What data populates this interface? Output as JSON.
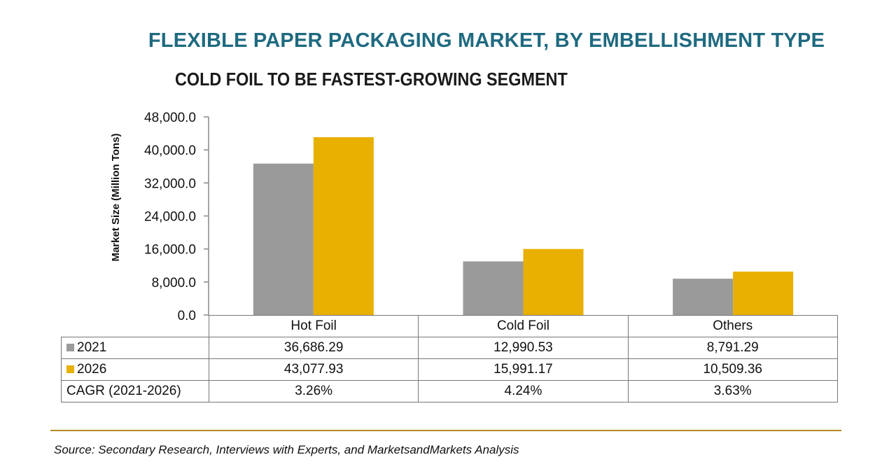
{
  "chart_data": {
    "type": "bar",
    "title": "FLEXIBLE PAPER PACKAGING MARKET, BY EMBELLISHMENT TYPE",
    "subtitle": "COLD FOIL TO BE FASTEST-GROWING SEGMENT",
    "ylabel": "Market Size (Million Tons)",
    "xlabel": "",
    "ylim": [
      0,
      48000
    ],
    "yticks": [
      "0.0",
      "8,000.0",
      "16,000.0",
      "24,000.0",
      "32,000.0",
      "40,000.0",
      "48,000.0"
    ],
    "categories": [
      "Hot Foil",
      "Cold Foil",
      "Others"
    ],
    "series": [
      {
        "name": "2021",
        "color": "#9a9a9a",
        "values": [
          36686.29,
          12990.53,
          8791.29
        ],
        "labels": [
          "36,686.29",
          "12,990.53",
          "8,791.29"
        ]
      },
      {
        "name": "2026",
        "color": "#e8b000",
        "values": [
          43077.93,
          15991.17,
          10509.36
        ],
        "labels": [
          "43,077.93",
          "15,991.17",
          "10,509.36"
        ]
      }
    ],
    "cagr_label": "CAGR (2021-2026)",
    "cagr": [
      "3.26%",
      "4.24%",
      "3.63%"
    ],
    "grid": false,
    "legend": "table-left"
  },
  "source": "Source: Secondary Research, Interviews with Experts, and MarketsandMarkets Analysis",
  "colors": {
    "title": "#1f6a80",
    "rule": "#b38b1f"
  }
}
